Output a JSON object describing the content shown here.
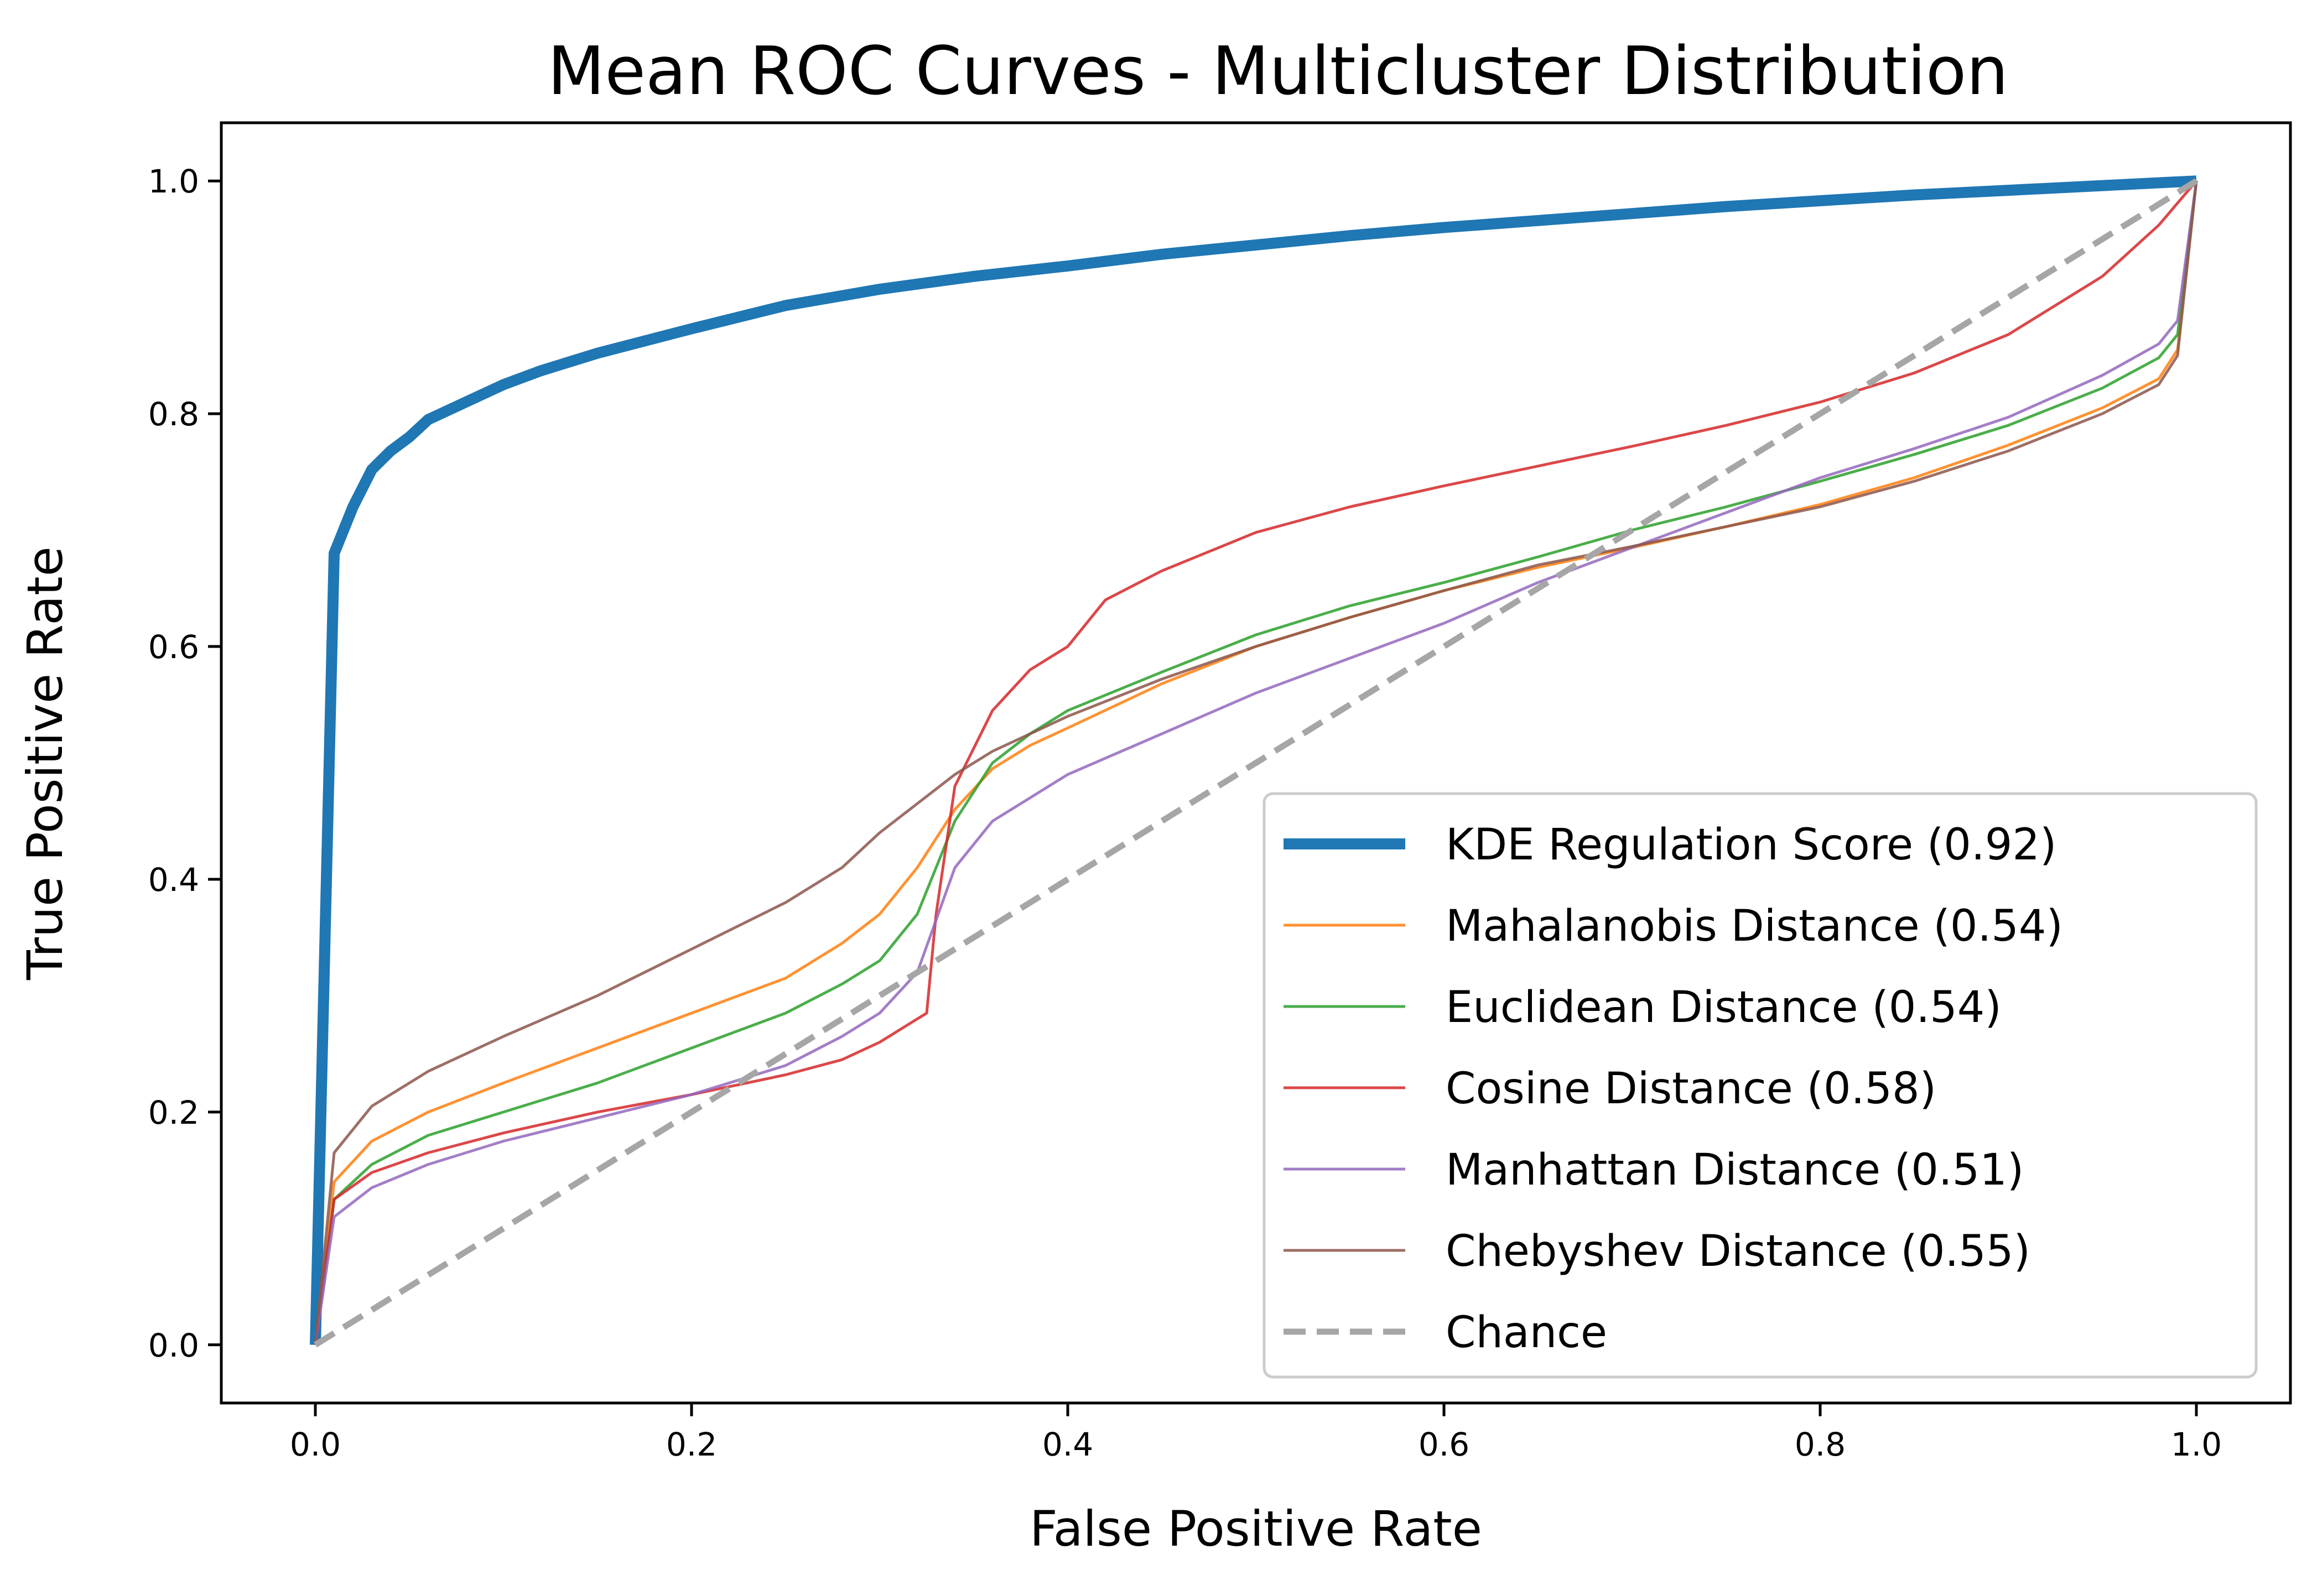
{
  "chart_data": {
    "type": "line",
    "title": "Mean ROC Curves - Multicluster Distribution",
    "xlabel": "False Positive Rate",
    "ylabel": "True Positive Rate",
    "xlim": [
      -0.05,
      1.05
    ],
    "ylim": [
      -0.05,
      1.05
    ],
    "xticks": [
      0.0,
      0.2,
      0.4,
      0.6,
      0.8,
      1.0
    ],
    "yticks": [
      0.0,
      0.2,
      0.4,
      0.6,
      0.8,
      1.0
    ],
    "xtick_labels": [
      "0.0",
      "0.2",
      "0.4",
      "0.6",
      "0.8",
      "1.0"
    ],
    "ytick_labels": [
      "0.0",
      "0.2",
      "0.4",
      "0.6",
      "0.8",
      "1.0"
    ],
    "grid": false,
    "legend_position": "lower-right",
    "series": [
      {
        "name": "KDE Regulation Score (0.92)",
        "color": "#1f77b4",
        "style": "solid-thick",
        "points": [
          [
            0,
            0
          ],
          [
            0.01,
            0.68
          ],
          [
            0.02,
            0.72
          ],
          [
            0.03,
            0.752
          ],
          [
            0.04,
            0.768
          ],
          [
            0.05,
            0.78
          ],
          [
            0.06,
            0.795
          ],
          [
            0.08,
            0.81
          ],
          [
            0.1,
            0.825
          ],
          [
            0.12,
            0.837
          ],
          [
            0.15,
            0.852
          ],
          [
            0.2,
            0.873
          ],
          [
            0.25,
            0.893
          ],
          [
            0.3,
            0.907
          ],
          [
            0.35,
            0.918
          ],
          [
            0.4,
            0.927
          ],
          [
            0.45,
            0.937
          ],
          [
            0.5,
            0.945
          ],
          [
            0.55,
            0.953
          ],
          [
            0.6,
            0.96
          ],
          [
            0.65,
            0.966
          ],
          [
            0.7,
            0.972
          ],
          [
            0.75,
            0.978
          ],
          [
            0.8,
            0.983
          ],
          [
            0.85,
            0.988
          ],
          [
            0.9,
            0.992
          ],
          [
            0.95,
            0.996
          ],
          [
            1.0,
            1.0
          ]
        ]
      },
      {
        "name": "Mahalanobis Distance (0.54)",
        "color": "#ff7f0e",
        "style": "solid",
        "points": [
          [
            0,
            0
          ],
          [
            0.01,
            0.14
          ],
          [
            0.03,
            0.175
          ],
          [
            0.06,
            0.2
          ],
          [
            0.1,
            0.225
          ],
          [
            0.15,
            0.255
          ],
          [
            0.2,
            0.285
          ],
          [
            0.25,
            0.315
          ],
          [
            0.28,
            0.345
          ],
          [
            0.3,
            0.37
          ],
          [
            0.32,
            0.41
          ],
          [
            0.34,
            0.46
          ],
          [
            0.36,
            0.495
          ],
          [
            0.38,
            0.515
          ],
          [
            0.4,
            0.53
          ],
          [
            0.45,
            0.568
          ],
          [
            0.5,
            0.6
          ],
          [
            0.55,
            0.625
          ],
          [
            0.6,
            0.648
          ],
          [
            0.65,
            0.668
          ],
          [
            0.7,
            0.685
          ],
          [
            0.75,
            0.703
          ],
          [
            0.8,
            0.722
          ],
          [
            0.85,
            0.745
          ],
          [
            0.9,
            0.773
          ],
          [
            0.95,
            0.805
          ],
          [
            0.98,
            0.83
          ],
          [
            0.99,
            0.855
          ],
          [
            1.0,
            1.0
          ]
        ]
      },
      {
        "name": "Euclidean Distance (0.54)",
        "color": "#2ca02c",
        "style": "solid",
        "points": [
          [
            0,
            0
          ],
          [
            0.01,
            0.125
          ],
          [
            0.03,
            0.155
          ],
          [
            0.06,
            0.18
          ],
          [
            0.1,
            0.2
          ],
          [
            0.15,
            0.225
          ],
          [
            0.2,
            0.255
          ],
          [
            0.25,
            0.285
          ],
          [
            0.28,
            0.31
          ],
          [
            0.3,
            0.33
          ],
          [
            0.32,
            0.37
          ],
          [
            0.34,
            0.45
          ],
          [
            0.36,
            0.5
          ],
          [
            0.38,
            0.525
          ],
          [
            0.4,
            0.545
          ],
          [
            0.45,
            0.578
          ],
          [
            0.5,
            0.61
          ],
          [
            0.55,
            0.635
          ],
          [
            0.6,
            0.655
          ],
          [
            0.65,
            0.677
          ],
          [
            0.7,
            0.7
          ],
          [
            0.75,
            0.72
          ],
          [
            0.8,
            0.742
          ],
          [
            0.85,
            0.765
          ],
          [
            0.9,
            0.79
          ],
          [
            0.95,
            0.822
          ],
          [
            0.98,
            0.848
          ],
          [
            0.99,
            0.868
          ],
          [
            1.0,
            1.0
          ]
        ]
      },
      {
        "name": "Cosine Distance (0.58)",
        "color": "#d62728",
        "style": "solid",
        "points": [
          [
            0,
            0
          ],
          [
            0.01,
            0.125
          ],
          [
            0.03,
            0.148
          ],
          [
            0.06,
            0.165
          ],
          [
            0.1,
            0.182
          ],
          [
            0.15,
            0.2
          ],
          [
            0.2,
            0.215
          ],
          [
            0.25,
            0.232
          ],
          [
            0.28,
            0.245
          ],
          [
            0.3,
            0.26
          ],
          [
            0.315,
            0.275
          ],
          [
            0.325,
            0.285
          ],
          [
            0.33,
            0.37
          ],
          [
            0.34,
            0.48
          ],
          [
            0.36,
            0.545
          ],
          [
            0.38,
            0.58
          ],
          [
            0.4,
            0.6
          ],
          [
            0.42,
            0.64
          ],
          [
            0.45,
            0.665
          ],
          [
            0.5,
            0.698
          ],
          [
            0.55,
            0.72
          ],
          [
            0.6,
            0.738
          ],
          [
            0.65,
            0.755
          ],
          [
            0.7,
            0.772
          ],
          [
            0.75,
            0.79
          ],
          [
            0.8,
            0.81
          ],
          [
            0.85,
            0.835
          ],
          [
            0.9,
            0.868
          ],
          [
            0.95,
            0.918
          ],
          [
            0.98,
            0.962
          ],
          [
            1.0,
            1.0
          ]
        ]
      },
      {
        "name": "Manhattan Distance (0.51)",
        "color": "#9467bd",
        "style": "solid",
        "points": [
          [
            0,
            0
          ],
          [
            0.01,
            0.11
          ],
          [
            0.03,
            0.135
          ],
          [
            0.06,
            0.155
          ],
          [
            0.1,
            0.175
          ],
          [
            0.15,
            0.195
          ],
          [
            0.2,
            0.215
          ],
          [
            0.25,
            0.24
          ],
          [
            0.28,
            0.265
          ],
          [
            0.3,
            0.285
          ],
          [
            0.32,
            0.32
          ],
          [
            0.34,
            0.41
          ],
          [
            0.36,
            0.45
          ],
          [
            0.38,
            0.47
          ],
          [
            0.4,
            0.49
          ],
          [
            0.45,
            0.525
          ],
          [
            0.5,
            0.56
          ],
          [
            0.55,
            0.59
          ],
          [
            0.6,
            0.62
          ],
          [
            0.65,
            0.655
          ],
          [
            0.7,
            0.685
          ],
          [
            0.75,
            0.715
          ],
          [
            0.8,
            0.745
          ],
          [
            0.85,
            0.77
          ],
          [
            0.9,
            0.797
          ],
          [
            0.95,
            0.833
          ],
          [
            0.98,
            0.86
          ],
          [
            0.99,
            0.88
          ],
          [
            1.0,
            1.0
          ]
        ]
      },
      {
        "name": "Chebyshev Distance (0.55)",
        "color": "#8c564b",
        "style": "solid",
        "points": [
          [
            0,
            0
          ],
          [
            0.01,
            0.165
          ],
          [
            0.03,
            0.205
          ],
          [
            0.06,
            0.235
          ],
          [
            0.1,
            0.265
          ],
          [
            0.15,
            0.3
          ],
          [
            0.2,
            0.34
          ],
          [
            0.25,
            0.38
          ],
          [
            0.28,
            0.41
          ],
          [
            0.3,
            0.44
          ],
          [
            0.32,
            0.465
          ],
          [
            0.34,
            0.49
          ],
          [
            0.36,
            0.51
          ],
          [
            0.38,
            0.525
          ],
          [
            0.4,
            0.54
          ],
          [
            0.45,
            0.572
          ],
          [
            0.5,
            0.6
          ],
          [
            0.55,
            0.625
          ],
          [
            0.6,
            0.648
          ],
          [
            0.65,
            0.67
          ],
          [
            0.7,
            0.686
          ],
          [
            0.75,
            0.703
          ],
          [
            0.8,
            0.72
          ],
          [
            0.85,
            0.742
          ],
          [
            0.9,
            0.768
          ],
          [
            0.95,
            0.8
          ],
          [
            0.98,
            0.825
          ],
          [
            0.99,
            0.85
          ],
          [
            1.0,
            1.0
          ]
        ]
      },
      {
        "name": "Chance",
        "color": "#a6a6a6",
        "style": "dashed",
        "points": [
          [
            0,
            0
          ],
          [
            1,
            1
          ]
        ]
      }
    ]
  }
}
